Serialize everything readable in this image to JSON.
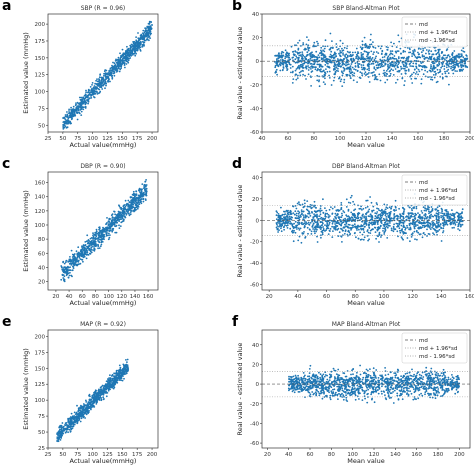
{
  "chart_data": [
    {
      "panel": "a",
      "type": "scatter",
      "title": "SBP (R = 0.96)",
      "xlabel": "Actual value(mmHg)",
      "ylabel": "Estimated value (mmHg)",
      "xlim": [
        25,
        210
      ],
      "ylim": [
        40,
        215
      ],
      "xticks": [
        25,
        50,
        75,
        100,
        125,
        150,
        175,
        200
      ],
      "yticks": [
        50,
        75,
        100,
        125,
        150,
        175,
        200
      ],
      "series": [
        {
          "shape": "linear",
          "x_range": [
            50,
            200
          ],
          "slope": 0.95,
          "intercept": 4,
          "spread": 7
        }
      ],
      "color": "#1f77b4"
    },
    {
      "panel": "b",
      "type": "scatter",
      "title": "SBP Bland-Altman Plot",
      "xlabel": "Mean value",
      "ylabel": "Real value - estimated value",
      "xlim": [
        40,
        200
      ],
      "ylim": [
        -60,
        40
      ],
      "xticks": [
        40,
        60,
        80,
        100,
        120,
        140,
        160,
        180,
        200
      ],
      "yticks": [
        -60,
        -40,
        -20,
        0,
        20,
        40
      ],
      "hlines": {
        "md": 0,
        "upper": 13,
        "lower": -13
      },
      "series": [
        {
          "shape": "band",
          "x_range": [
            50,
            198
          ],
          "center": 0,
          "spread": 8
        }
      ],
      "legend": [
        "md",
        "md + 1.96*sd",
        "md - 1.96*sd"
      ],
      "legend_position": "top-right",
      "color": "#1f77b4"
    },
    {
      "panel": "c",
      "type": "scatter",
      "title": "DBP (R = 0.90)",
      "xlabel": "Actual value(mmHg)",
      "ylabel": "Estimated value (mmHg)",
      "xlim": [
        8,
        175
      ],
      "ylim": [
        8,
        175
      ],
      "xticks": [
        20,
        40,
        60,
        80,
        100,
        120,
        140,
        160
      ],
      "yticks": [
        20,
        40,
        60,
        80,
        100,
        120,
        140,
        160
      ],
      "series": [
        {
          "shape": "linear",
          "x_range": [
            28,
            158
          ],
          "slope": 0.92,
          "intercept": 5,
          "spread": 8
        }
      ],
      "color": "#1f77b4"
    },
    {
      "panel": "d",
      "type": "scatter",
      "title": "DBP Bland-Altman Plot",
      "xlabel": "Mean value",
      "ylabel": "Real value - estimated value",
      "xlim": [
        15,
        160
      ],
      "ylim": [
        -65,
        45
      ],
      "xticks": [
        20,
        40,
        60,
        80,
        100,
        120,
        140,
        160
      ],
      "yticks": [
        -60,
        -40,
        -20,
        0,
        20,
        40
      ],
      "hlines": {
        "md": 0,
        "upper": 14,
        "lower": -14
      },
      "series": [
        {
          "shape": "band",
          "x_range": [
            25,
            155
          ],
          "center": 0,
          "spread": 8
        }
      ],
      "legend": [
        "md",
        "md + 1.96*sd",
        "md - 1.96*sd"
      ],
      "legend_position": "top-right",
      "color": "#1f77b4"
    },
    {
      "panel": "e",
      "type": "scatter",
      "title": "MAP (R = 0.92)",
      "xlabel": "Actual value(mmHg)",
      "ylabel": "Estimated value (mmHg)",
      "xlim": [
        25,
        210
      ],
      "ylim": [
        25,
        210
      ],
      "xticks": [
        25,
        50,
        75,
        100,
        125,
        150,
        175,
        200
      ],
      "yticks": [
        25,
        50,
        75,
        100,
        125,
        150,
        175,
        200
      ],
      "series": [
        {
          "shape": "linear",
          "x_range": [
            40,
            160
          ],
          "slope": 0.92,
          "intercept": 6,
          "spread": 7
        }
      ],
      "color": "#1f77b4"
    },
    {
      "panel": "f",
      "type": "scatter",
      "title": "MAP Bland-Altman Plot",
      "xlabel": "Mean value",
      "ylabel": "Real value - estimated value",
      "xlim": [
        15,
        210
      ],
      "ylim": [
        -65,
        55
      ],
      "xticks": [
        20,
        40,
        60,
        80,
        100,
        120,
        140,
        160,
        180,
        200
      ],
      "yticks": [
        -60,
        -40,
        -20,
        0,
        20,
        40
      ],
      "hlines": {
        "md": 0,
        "upper": 13,
        "lower": -13
      },
      "series": [
        {
          "shape": "band",
          "x_range": [
            40,
            200
          ],
          "center": 0,
          "spread": 7
        }
      ],
      "legend": [
        "md",
        "md + 1.96*sd",
        "md - 1.96*sd"
      ],
      "legend_position": "top-right",
      "color": "#1f77b4"
    }
  ]
}
